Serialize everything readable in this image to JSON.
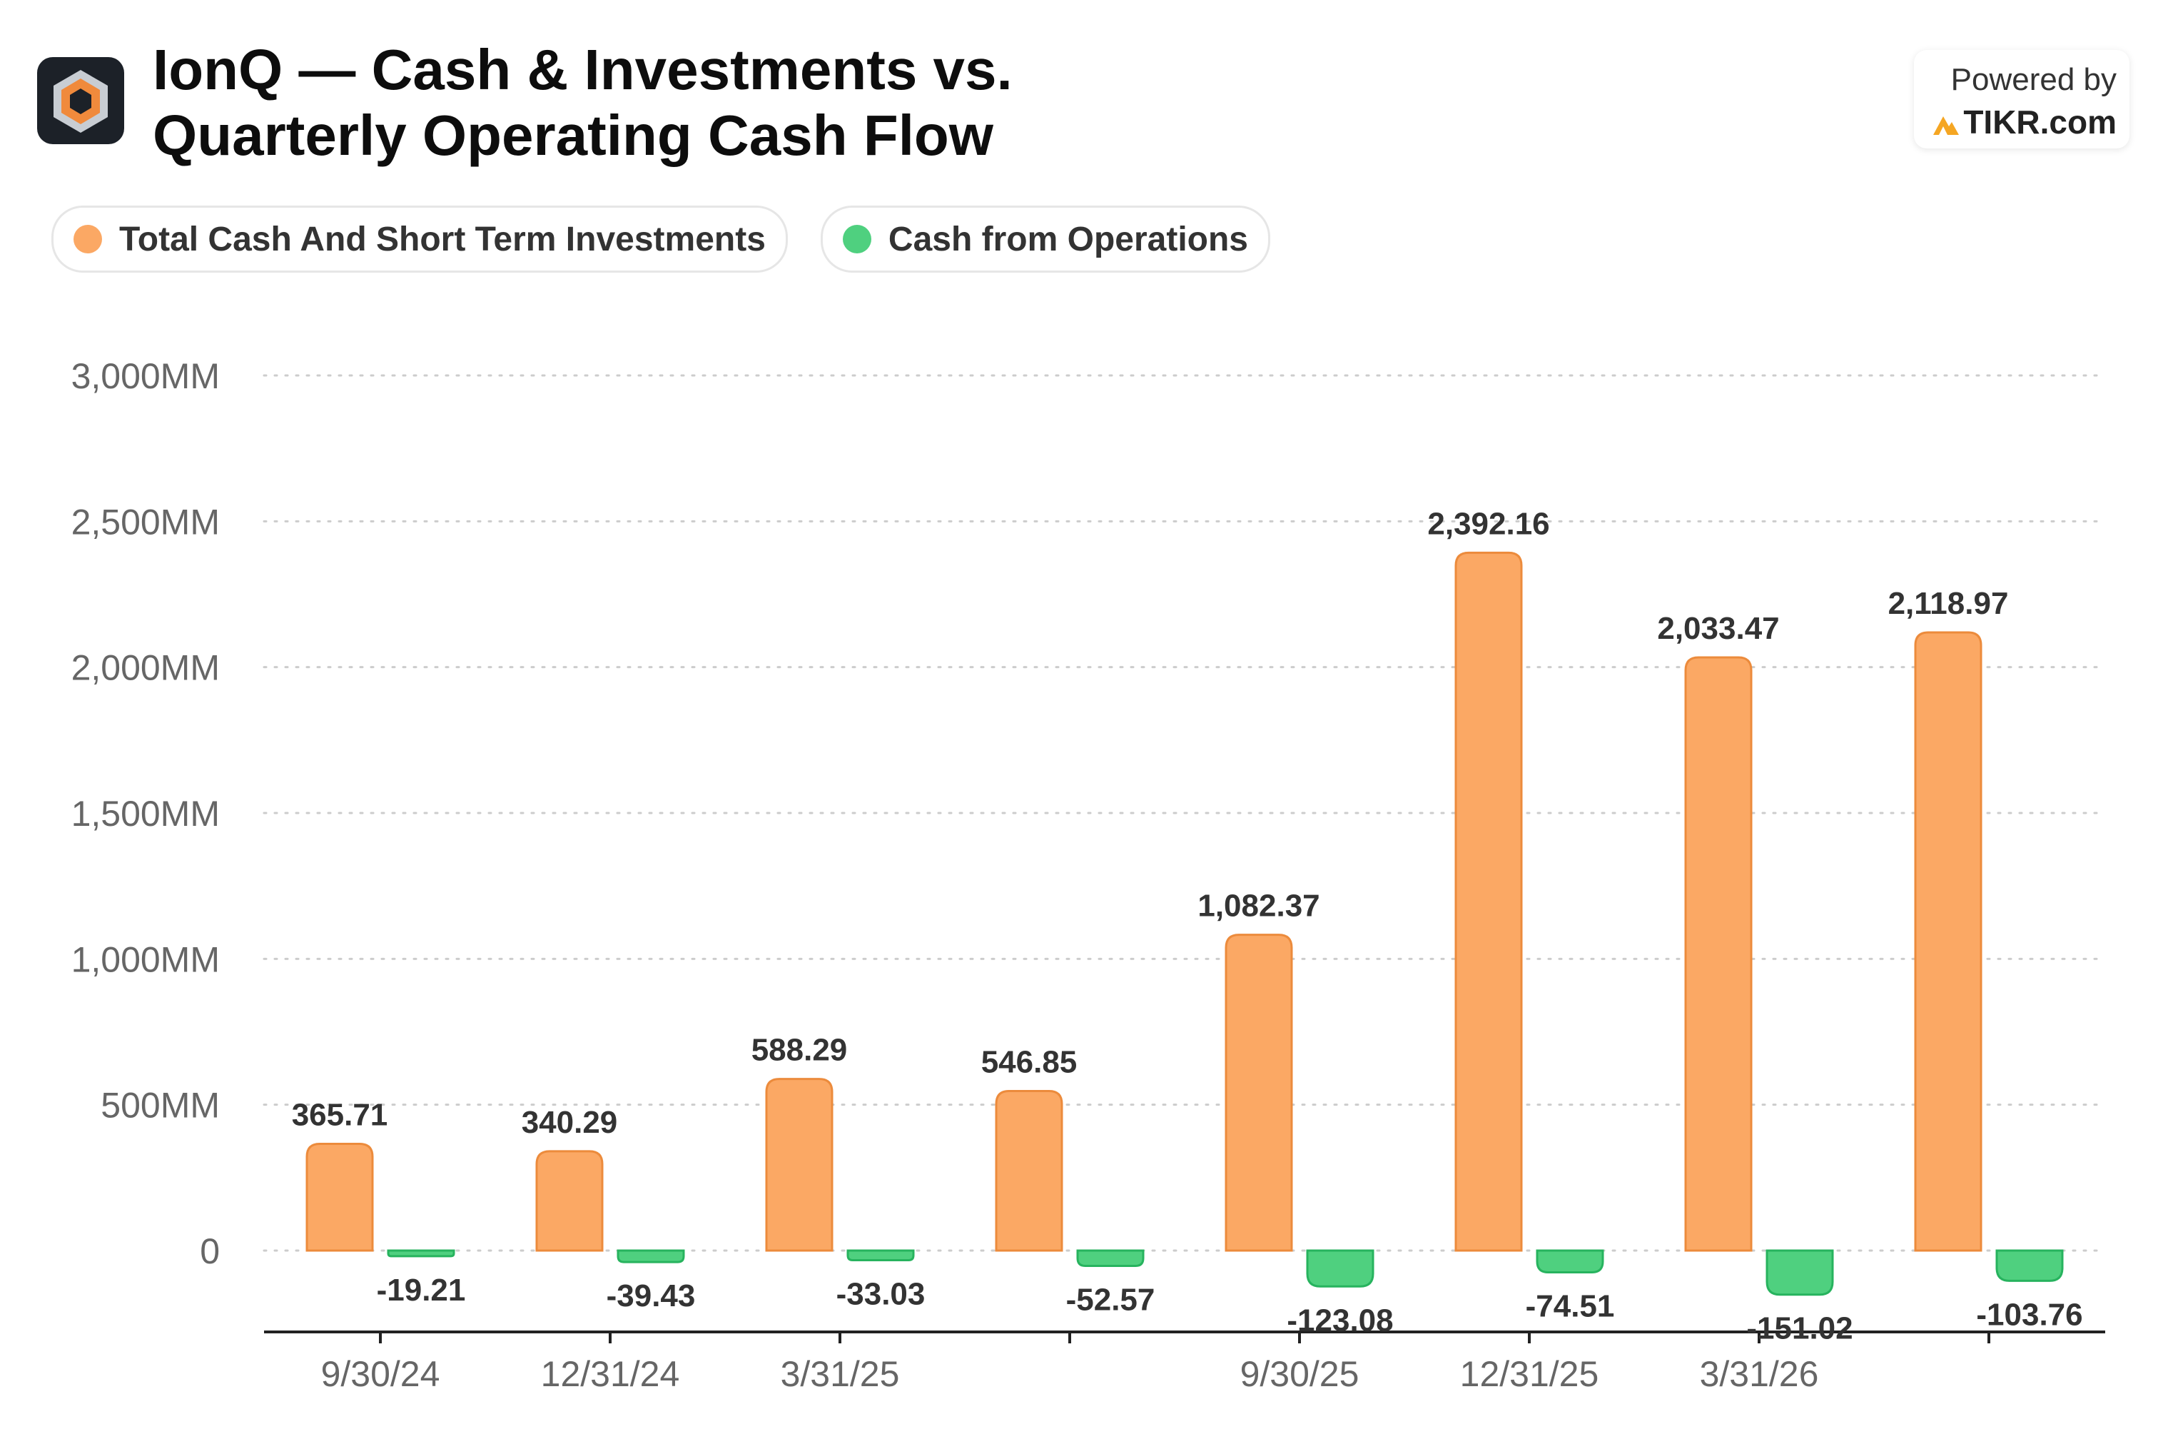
{
  "header": {
    "title_line1": "IonQ — Cash & Investments vs.",
    "title_line2": "Quarterly Operating Cash Flow",
    "powered_by": "Powered by",
    "brand": "TIKR.com"
  },
  "colors": {
    "cash": "#fba864",
    "cash_stroke": "#ec8b3c",
    "ops": "#4fd07f",
    "ops_stroke": "#27b35e",
    "grid": "#cccccc",
    "axis": "#222222",
    "tick_text": "#666666",
    "value_text": "#333333",
    "logo_orange": "#f08a3c"
  },
  "chart_data": {
    "type": "bar",
    "categories": [
      "9/30/24",
      "12/31/24",
      "3/31/25",
      "",
      "9/30/25",
      "12/31/25",
      "3/31/26",
      ""
    ],
    "series": [
      {
        "name": "Total Cash And Short Term Investments",
        "values": [
          365.71,
          340.29,
          588.29,
          546.85,
          1082.37,
          2392.16,
          2033.47,
          2118.97
        ],
        "labels": [
          "365.71",
          "340.29",
          "588.29",
          "546.85",
          "1,082.37",
          "2,392.16",
          "2,033.47",
          "2,118.97"
        ]
      },
      {
        "name": "Cash from Operations",
        "values": [
          -19.21,
          -39.43,
          -33.03,
          -52.57,
          -123.08,
          -74.51,
          -151.02,
          -103.76
        ],
        "labels": [
          "-19.21",
          "-39.43",
          "-33.03",
          "-52.57",
          "-123.08",
          "-74.51",
          "-151.02",
          "-103.76"
        ]
      }
    ],
    "yticks": [
      0,
      500,
      1000,
      1500,
      2000,
      2500,
      3000
    ],
    "ytick_labels": [
      "0",
      "500MM",
      "1,000MM",
      "1,500MM",
      "2,000MM",
      "2,500MM",
      "3,000MM"
    ],
    "ylim": [
      -280,
      3000
    ],
    "grid": true,
    "legend_position": "top-left"
  }
}
